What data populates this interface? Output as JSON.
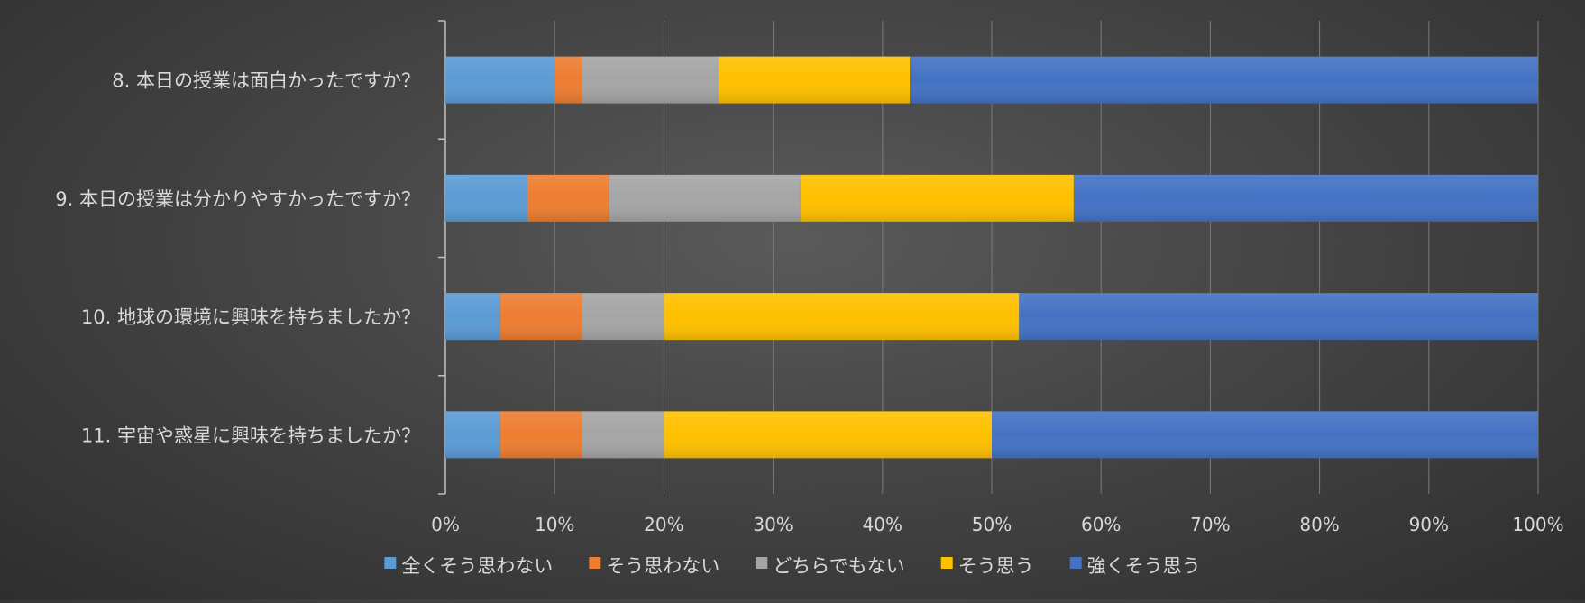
{
  "chart_data": {
    "type": "bar",
    "orientation": "horizontal",
    "stacked": "percent",
    "categories": [
      "8. 本日の授業は面白かったですか？",
      "9. 本日の授業は分かりやすかったですか？",
      "10. 地球の環境に興味を持ちましたか？",
      "11. 宇宙や惑星に興味を持ちましたか？"
    ],
    "series": [
      {
        "name": "全くそう思わない",
        "color": "#5b9bd5",
        "values": [
          10.0,
          7.5,
          5.0,
          5.0
        ]
      },
      {
        "name": "そう思わない",
        "color": "#ed7d31",
        "values": [
          2.5,
          7.5,
          7.5,
          7.5
        ]
      },
      {
        "name": "どちらでもない",
        "color": "#a5a5a5",
        "values": [
          12.5,
          17.5,
          7.5,
          7.5
        ]
      },
      {
        "name": "そう思う",
        "color": "#ffc000",
        "values": [
          17.5,
          25.0,
          32.5,
          30.0
        ]
      },
      {
        "name": "強くそう思う",
        "color": "#4472c4",
        "values": [
          57.5,
          42.5,
          47.5,
          50.0
        ]
      }
    ],
    "xlim": [
      0,
      100
    ],
    "x_ticks": [
      "0%",
      "10%",
      "20%",
      "30%",
      "40%",
      "50%",
      "60%",
      "70%",
      "80%",
      "90%",
      "100%"
    ],
    "grid": "vertical",
    "legend": "bottom",
    "title": "",
    "xlabel": "",
    "ylabel": ""
  }
}
